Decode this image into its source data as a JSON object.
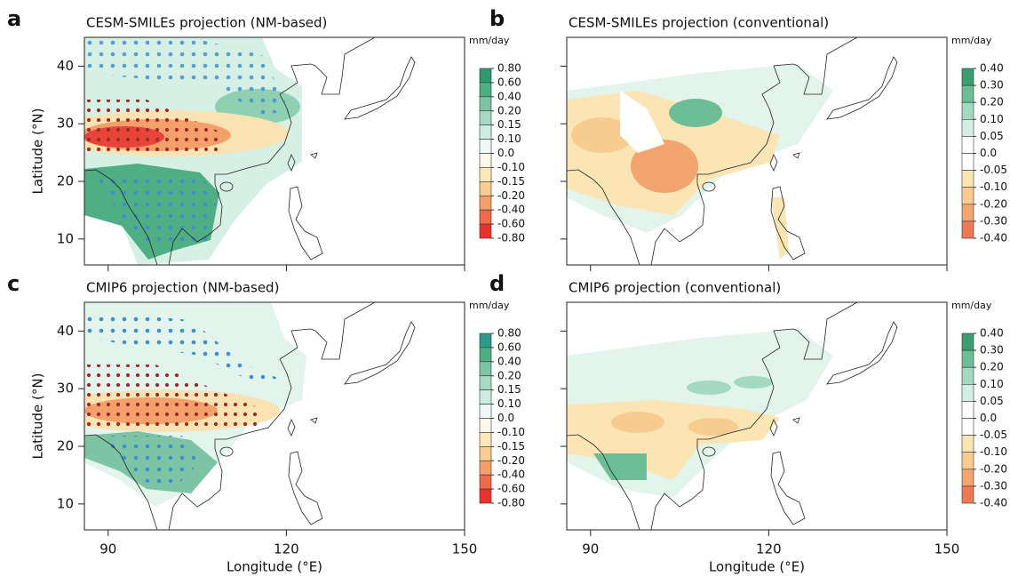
{
  "panels": [
    {
      "letter": "a",
      "title": "CESM-SMILEs projection (NM-based)",
      "unit": "mm/day",
      "ylabel": "Latitude (°N)",
      "xlim": [
        86,
        150
      ],
      "ylim": [
        5.5,
        45
      ],
      "xticks": [
        90,
        120,
        150
      ],
      "yticks": [
        10,
        20,
        30,
        40
      ],
      "xtick_labels": false,
      "ytick_labels": true,
      "colorbar": {
        "levels": [
          {
            "value": 0.8,
            "label": "0.80"
          },
          {
            "value": 0.6,
            "label": "0.60"
          },
          {
            "value": 0.4,
            "label": "0.40"
          },
          {
            "value": 0.2,
            "label": "0.20"
          },
          {
            "value": 0.15,
            "label": "0.15"
          },
          {
            "value": 0.1,
            "label": "0.10"
          },
          {
            "value": 0,
            "label": "0.0"
          },
          {
            "value": -0.1,
            "label": "-0.10"
          },
          {
            "value": -0.15,
            "label": "-0.15"
          },
          {
            "value": -0.2,
            "label": "-0.20"
          },
          {
            "value": -0.4,
            "label": "-0.40"
          },
          {
            "value": -0.6,
            "label": "-0.60"
          },
          {
            "value": -0.8,
            "label": "-0.80"
          }
        ],
        "colors": [
          "#2e9a6e",
          "#4fae84",
          "#7cc4a4",
          "#a6d9c4",
          "#cdebe0",
          "#eef8f4",
          "#fdf8ea",
          "#fbe7b8",
          "#f8cd92",
          "#f3a06b",
          "#ee6a4a",
          "#e8322c"
        ]
      }
    },
    {
      "letter": "b",
      "title": "CESM-SMILEs projection (conventional)",
      "unit": "mm/day",
      "xlim": [
        86,
        150
      ],
      "ylim": [
        5.5,
        45
      ],
      "xticks": [
        90,
        120,
        150
      ],
      "yticks": [
        10,
        20,
        30,
        40
      ],
      "xtick_labels": false,
      "ytick_labels": false,
      "colorbar": {
        "levels": [
          {
            "value": 0.4,
            "label": "0.40"
          },
          {
            "value": 0.3,
            "label": "0.30"
          },
          {
            "value": 0.2,
            "label": "0.20"
          },
          {
            "value": 0.1,
            "label": "0.10"
          },
          {
            "value": 0.05,
            "label": "0.05"
          },
          {
            "value": 0,
            "label": "0.0"
          },
          {
            "value": -0.05,
            "label": "-0.05"
          },
          {
            "value": -0.1,
            "label": "-0.10"
          },
          {
            "value": -0.2,
            "label": "-0.20"
          },
          {
            "value": -0.3,
            "label": "-0.30"
          },
          {
            "value": -0.4,
            "label": "-0.40"
          }
        ],
        "colors": [
          "#3a9f70",
          "#6cbe97",
          "#a3d8c1",
          "#d3eee4",
          "#ffffff",
          "#ffffff",
          "#fbe5b5",
          "#f8cb91",
          "#f3a570",
          "#ee7a55"
        ]
      }
    },
    {
      "letter": "c",
      "title": "CMIP6 projection (NM-based)",
      "unit": "mm/day",
      "ylabel": "Latitude (°N)",
      "xlabel": "Longitude (°E)",
      "xlim": [
        86,
        150
      ],
      "ylim": [
        5.5,
        45
      ],
      "xticks": [
        90,
        120,
        150
      ],
      "yticks": [
        10,
        20,
        30,
        40
      ],
      "xtick_labels": true,
      "ytick_labels": true,
      "colorbar": {
        "levels": [
          {
            "value": 0.8,
            "label": "0.80"
          },
          {
            "value": 0.6,
            "label": "0.60"
          },
          {
            "value": 0.4,
            "label": "0.40"
          },
          {
            "value": 0.2,
            "label": "0.20"
          },
          {
            "value": 0.15,
            "label": "0.15"
          },
          {
            "value": 0.1,
            "label": "0.10"
          },
          {
            "value": 0,
            "label": "0.0"
          },
          {
            "value": -0.1,
            "label": "-0.10"
          },
          {
            "value": -0.15,
            "label": "-0.15"
          },
          {
            "value": -0.2,
            "label": "-0.20"
          },
          {
            "value": -0.4,
            "label": "-0.40"
          },
          {
            "value": -0.6,
            "label": "-0.60"
          },
          {
            "value": -0.8,
            "label": "-0.80"
          }
        ],
        "colors": [
          "#2e9a8e",
          "#4fae84",
          "#7cc4a4",
          "#a6d9c4",
          "#cdebe0",
          "#eef8f4",
          "#fdf8ea",
          "#fbe7b8",
          "#f8cd92",
          "#f3a06b",
          "#ee6a4a",
          "#e8322c"
        ]
      }
    },
    {
      "letter": "d",
      "title": "CMIP6 projection (conventional)",
      "unit": "mm/day",
      "xlabel": "Longitude (°E)",
      "xlim": [
        86,
        150
      ],
      "ylim": [
        5.5,
        45
      ],
      "xticks": [
        90,
        120,
        150
      ],
      "yticks": [
        10,
        20,
        30,
        40
      ],
      "xtick_labels": true,
      "ytick_labels": false,
      "colorbar": {
        "levels": [
          {
            "value": 0.4,
            "label": "0.40"
          },
          {
            "value": 0.3,
            "label": "0.30"
          },
          {
            "value": 0.2,
            "label": "0.20"
          },
          {
            "value": 0.1,
            "label": "0.10"
          },
          {
            "value": 0.05,
            "label": "0.05"
          },
          {
            "value": 0,
            "label": "0.0"
          },
          {
            "value": -0.05,
            "label": "-0.05"
          },
          {
            "value": -0.1,
            "label": "-0.10"
          },
          {
            "value": -0.2,
            "label": "-0.20"
          },
          {
            "value": -0.3,
            "label": "-0.30"
          },
          {
            "value": -0.4,
            "label": "-0.40"
          }
        ],
        "colors": [
          "#3a9f70",
          "#6cbe97",
          "#a3d8c1",
          "#d3eee4",
          "#ffffff",
          "#ffffff",
          "#fbe5b5",
          "#f8cb91",
          "#f3a570",
          "#ee7a55"
        ]
      }
    }
  ]
}
